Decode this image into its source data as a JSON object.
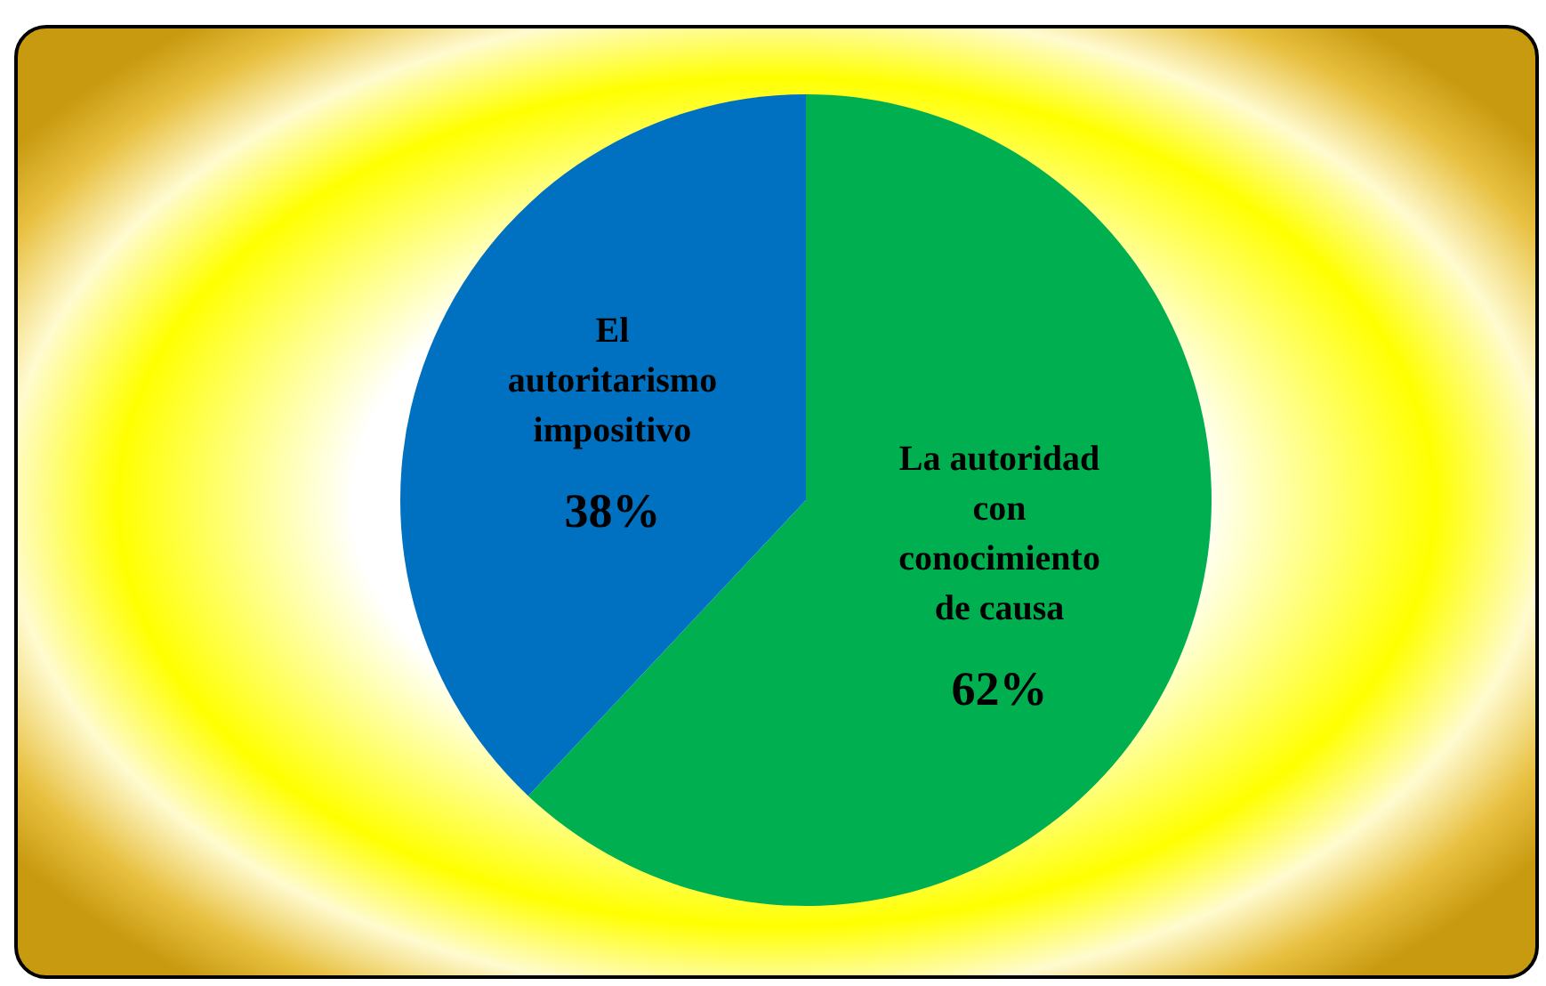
{
  "chart_data": {
    "type": "pie",
    "categories": [
      "La autoridad con conocimiento de causa",
      "El autoritarismo impositivo"
    ],
    "values": [
      62,
      38
    ],
    "colors": [
      "#00b050",
      "#0070c0"
    ],
    "value_labels": [
      "62%",
      "38%"
    ]
  }
}
